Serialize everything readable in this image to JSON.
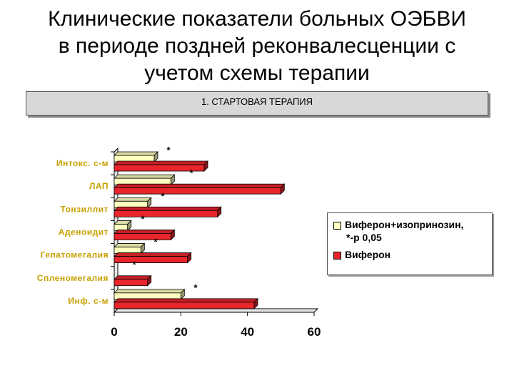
{
  "title": {
    "line1": "Клинические показатели больных ОЭБВИ",
    "line2": "в периоде поздней реконвалесценции с",
    "line3": "учетом схемы терапии"
  },
  "banner": {
    "text": "1. СТАРТОВАЯ ТЕРАПИЯ"
  },
  "colors": {
    "series1": "#ffffc0",
    "series2": "#e8262c",
    "axis": "#000000",
    "category_text": "#c8a000",
    "background": "#ffffff"
  },
  "legend": {
    "items": [
      {
        "label": "Виферон+изопринозин,",
        "color": "#ffffc0"
      },
      {
        "label": "Виферон",
        "color": "#e8262c"
      }
    ],
    "note": "*-р   0,05"
  },
  "chart_data": {
    "type": "bar",
    "orientation": "horizontal",
    "style": "3d",
    "categories": [
      "Интокс. с-м",
      "ЛАП",
      "Тонзиллит",
      "Аденоидит",
      "Гепатомегалия",
      "Спленомегалия",
      "Инф. с-м"
    ],
    "series": [
      {
        "name": "Виферон+изопринозин,",
        "values": [
          12,
          17,
          10,
          4,
          8,
          0,
          20
        ]
      },
      {
        "name": "Виферон",
        "values": [
          27,
          50,
          31,
          17,
          22,
          10,
          42
        ]
      }
    ],
    "significance_marks": [
      "*",
      "*",
      "*",
      "*",
      "*",
      "*",
      "*"
    ],
    "xlim": [
      0,
      60
    ],
    "xticks": [
      "0",
      "20",
      "40",
      "60"
    ],
    "xlabel": "",
    "ylabel": "",
    "grid": false,
    "legend_position": "right"
  }
}
